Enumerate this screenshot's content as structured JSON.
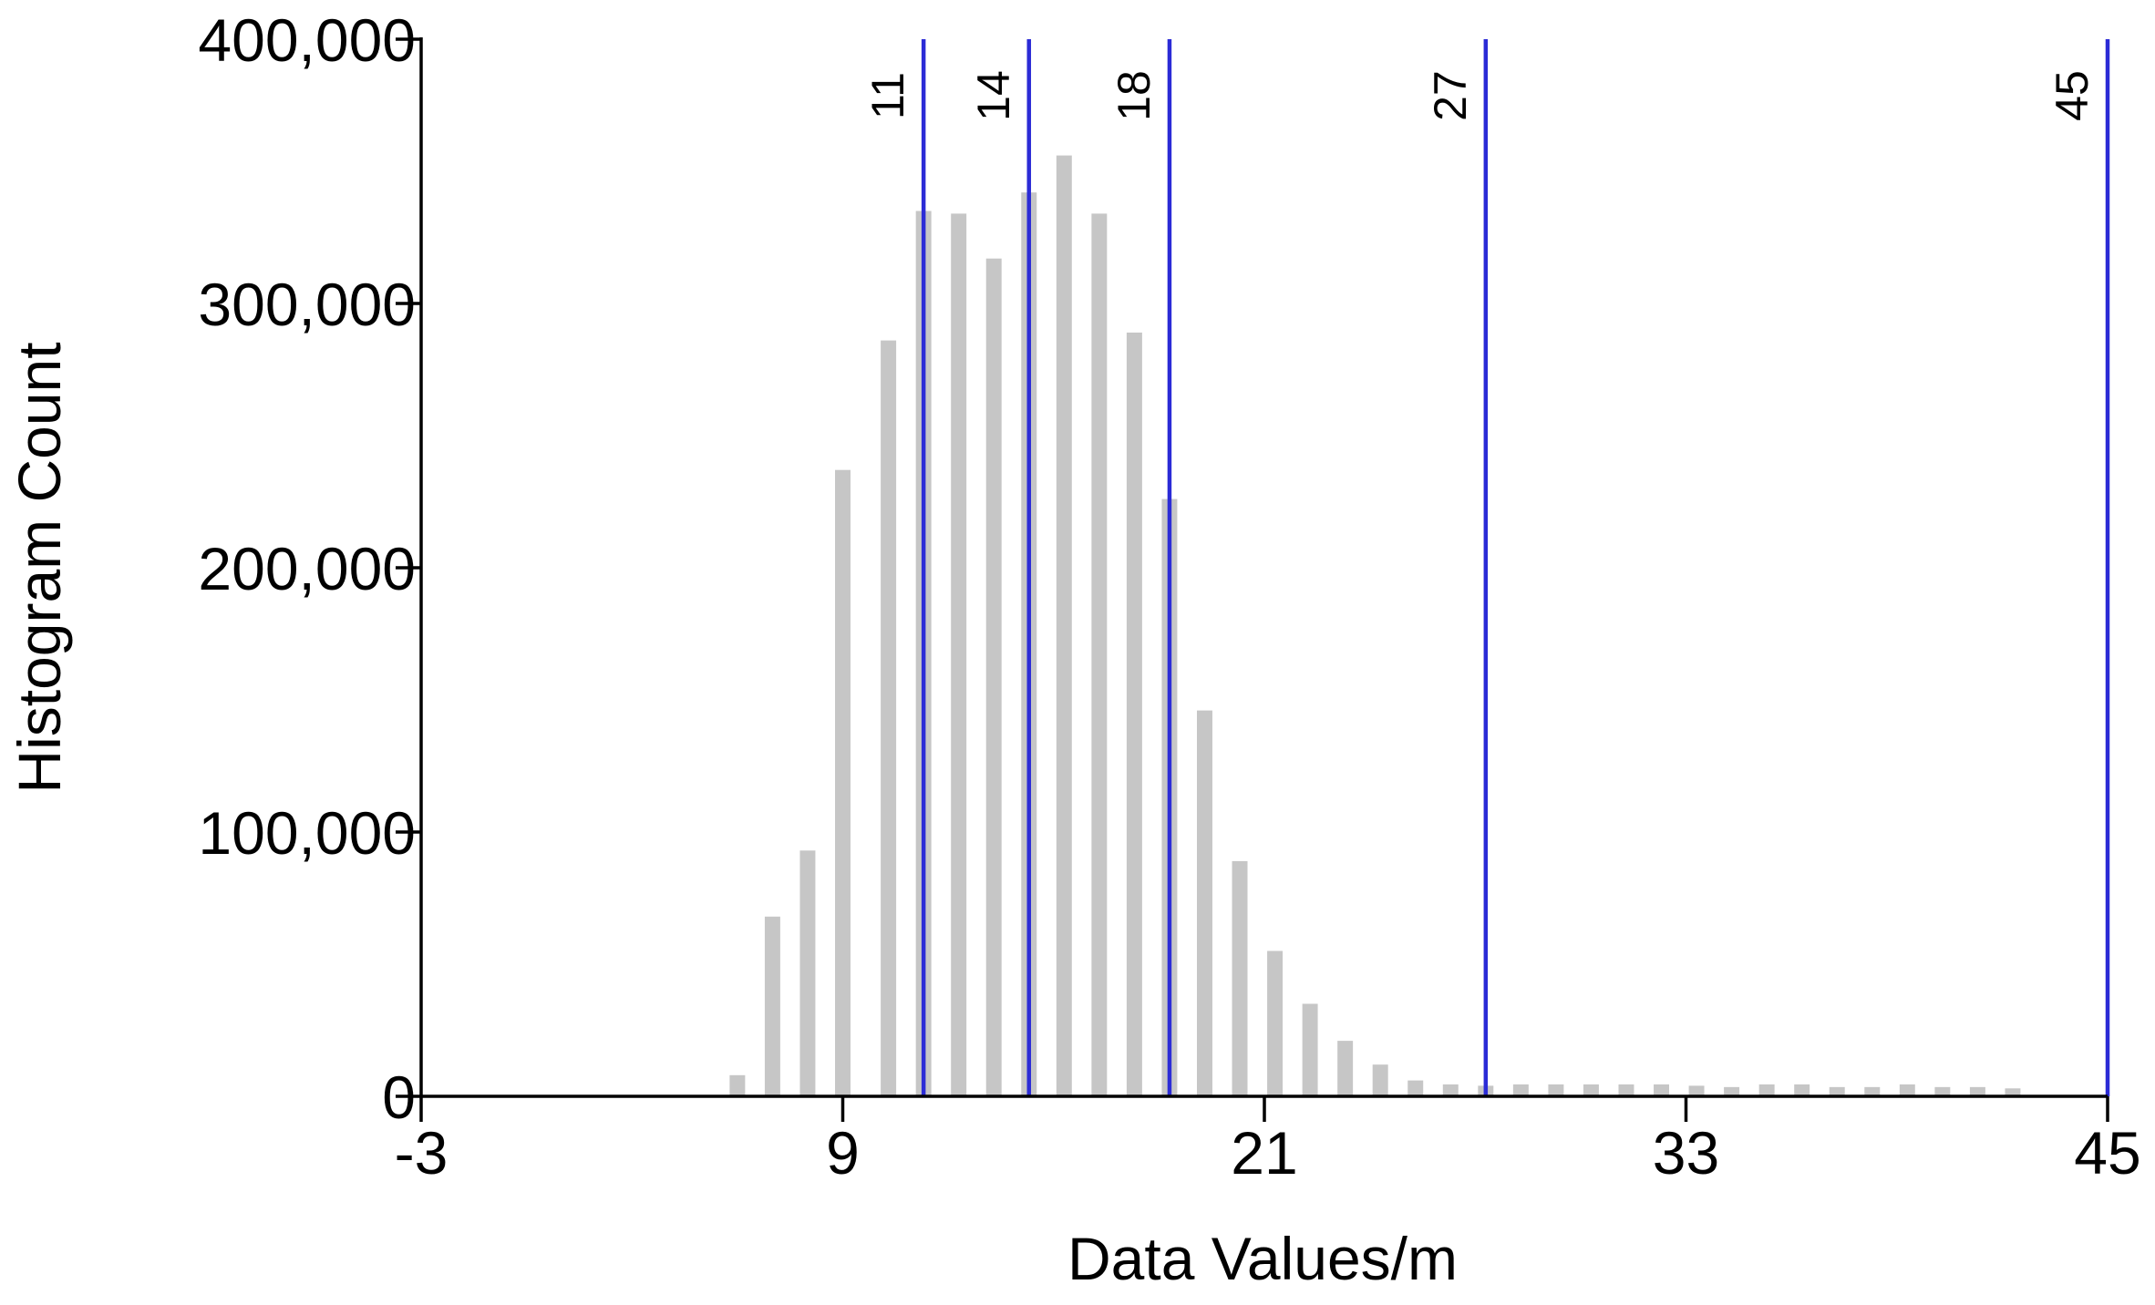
{
  "chart_data": {
    "type": "bar",
    "title": "",
    "xlabel": "Data Values/m",
    "ylabel": "Histogram Count",
    "xlim": [
      -3,
      45
    ],
    "ylim": [
      0,
      400000
    ],
    "x_ticks": [
      -3,
      9,
      21,
      33,
      45
    ],
    "x_tick_labels": [
      "-3",
      "9",
      "21",
      "33",
      "45"
    ],
    "y_ticks": [
      0,
      100000,
      200000,
      300000,
      400000
    ],
    "y_tick_labels": [
      "0",
      "100,000",
      "200,000",
      "300,000",
      "400,000"
    ],
    "grid": false,
    "legend": "none",
    "bin_width": 1,
    "bars": [
      {
        "x": 6.0,
        "y": 8000
      },
      {
        "x": 7.0,
        "y": 68000
      },
      {
        "x": 8.0,
        "y": 93000
      },
      {
        "x": 9.0,
        "y": 237000
      },
      {
        "x": 10.3,
        "y": 286000
      },
      {
        "x": 11.3,
        "y": 335000
      },
      {
        "x": 12.3,
        "y": 334000
      },
      {
        "x": 13.3,
        "y": 317000
      },
      {
        "x": 14.3,
        "y": 342000
      },
      {
        "x": 15.3,
        "y": 356000
      },
      {
        "x": 16.3,
        "y": 334000
      },
      {
        "x": 17.3,
        "y": 289000
      },
      {
        "x": 18.3,
        "y": 226000
      },
      {
        "x": 19.3,
        "y": 146000
      },
      {
        "x": 20.3,
        "y": 89000
      },
      {
        "x": 21.3,
        "y": 55000
      },
      {
        "x": 22.3,
        "y": 35000
      },
      {
        "x": 23.3,
        "y": 21000
      },
      {
        "x": 24.3,
        "y": 12000
      },
      {
        "x": 25.3,
        "y": 6000
      },
      {
        "x": 26.3,
        "y": 4500
      },
      {
        "x": 27.3,
        "y": 4000
      },
      {
        "x": 28.3,
        "y": 4500
      },
      {
        "x": 29.3,
        "y": 4500
      },
      {
        "x": 30.3,
        "y": 4500
      },
      {
        "x": 31.3,
        "y": 4500
      },
      {
        "x": 32.3,
        "y": 4500
      },
      {
        "x": 33.3,
        "y": 4000
      },
      {
        "x": 34.3,
        "y": 3500
      },
      {
        "x": 35.3,
        "y": 4500
      },
      {
        "x": 36.3,
        "y": 4500
      },
      {
        "x": 37.3,
        "y": 3500
      },
      {
        "x": 38.3,
        "y": 3500
      },
      {
        "x": 39.3,
        "y": 4500
      },
      {
        "x": 40.3,
        "y": 3500
      },
      {
        "x": 41.3,
        "y": 3500
      },
      {
        "x": 42.3,
        "y": 3000
      }
    ],
    "threshold_lines": [
      {
        "value": 11.3,
        "label": "11"
      },
      {
        "value": 14.3,
        "label": "14"
      },
      {
        "value": 18.3,
        "label": "18"
      },
      {
        "value": 27.3,
        "label": "27"
      },
      {
        "value": 45,
        "label": "45"
      }
    ],
    "colors": {
      "bars": "#c6c6c6",
      "threshold_lines": "#2b2bd6",
      "axes": "#000000"
    }
  }
}
